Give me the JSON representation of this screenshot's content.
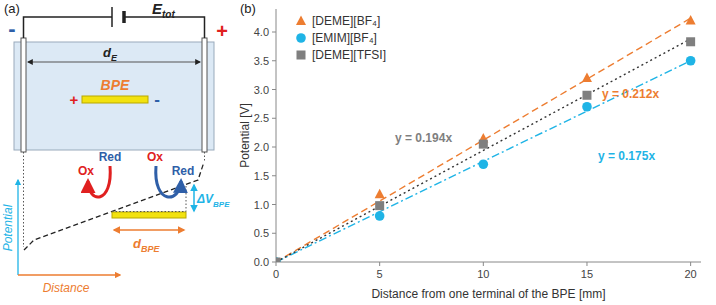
{
  "panels": {
    "a": "(a)",
    "b": "(b)"
  },
  "diagram": {
    "terminal_negative": "-",
    "terminal_positive": "+",
    "voltage": {
      "text": "E",
      "sub": "tot"
    },
    "electrode_gap": {
      "text": "d",
      "sub": "E"
    },
    "bpe": "BPE",
    "bpe_positive": "+",
    "bpe_negative": "-",
    "reactions": [
      {
        "text": "Ox",
        "color": "#e02020"
      },
      {
        "text": "Red",
        "color": "#2f5fa8"
      },
      {
        "text": "Ox",
        "color": "#e02020"
      },
      {
        "text": "Red",
        "color": "#2f5fa8"
      }
    ],
    "potential_drop": {
      "text": "ΔV",
      "sub": "BPE"
    },
    "bpe_length": {
      "text": "d",
      "sub": "BPE"
    },
    "axis_y": "Potential",
    "axis_x": "Distance"
  },
  "chart_data": {
    "type": "scatter",
    "x_label": "Distance from one terminal of the BPE [mm]",
    "y_label": "Potential [V]",
    "x": [
      0,
      5,
      10,
      15,
      20
    ],
    "xlim": [
      0,
      20.5
    ],
    "xticks": [
      0,
      5,
      10,
      15,
      20
    ],
    "ylim": [
      0,
      4.4
    ],
    "yticks": [
      {
        "value": 0,
        "label": "0.0"
      },
      0.5,
      {
        "value": 1,
        "label": "1.0"
      },
      1.5,
      {
        "value": 2,
        "label": "2.0"
      },
      2.5,
      {
        "value": 3,
        "label": "3.0"
      },
      3.5,
      {
        "value": 4,
        "label": "4.0"
      }
    ],
    "grid": false,
    "legend": "upper-left",
    "series": [
      {
        "name": "[DEME][BF₄]",
        "color": "#ed7d31",
        "marker": "triangle",
        "values": [
          0,
          1.18,
          2.15,
          3.2,
          4.2
        ]
      },
      {
        "name": "[EMIM][BF₄]",
        "color": "#1fb4e6",
        "marker": "circle",
        "values": [
          0,
          0.8,
          1.7,
          2.7,
          3.5
        ]
      },
      {
        "name": "[DEME][TFSI]",
        "color": "#7f7f7f",
        "marker": "square",
        "values": [
          0,
          0.98,
          2.05,
          2.9,
          3.83
        ]
      }
    ],
    "trendlines": [
      {
        "label": "y = 0.212x",
        "slope": 0.212,
        "x_range": [
          0,
          20
        ],
        "color": "#ed7d31",
        "line_style": "dashed"
      },
      {
        "label": "y = 0.175x",
        "slope": 0.175,
        "x_range": [
          0,
          20
        ],
        "color": "#1fb4e6",
        "line_style": "dashdot"
      },
      {
        "label": "y = 0.194x",
        "slope": 0.194,
        "x_range": [
          0,
          20
        ],
        "color": "#333333",
        "label_color": "#7f7f7f",
        "line_style": "dotted"
      }
    ]
  }
}
